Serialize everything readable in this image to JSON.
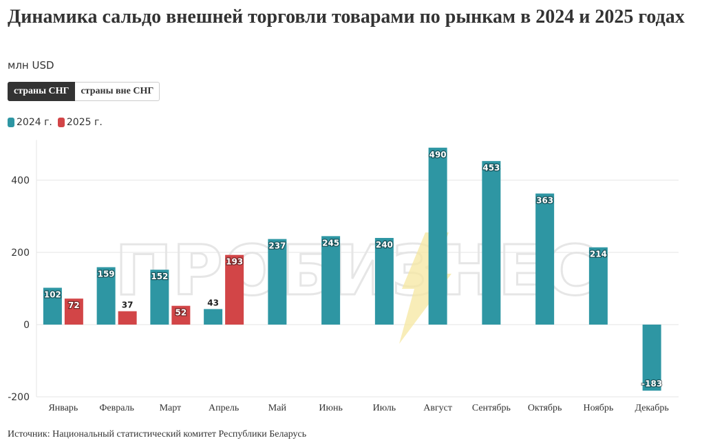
{
  "title": "Динамика сальдо внешней торговли товарами по рынкам в 2024 и 2025 годах",
  "subtitle": "млн USD",
  "tabs": [
    {
      "label": "страны СНГ",
      "active": true
    },
    {
      "label": "страны вне СНГ",
      "active": false
    }
  ],
  "watermark": "ПРОБИЗНЕС",
  "source": "Источник: Национальный статистический комитет Республики Беларусь",
  "colors": {
    "s2024": "#2e96a3",
    "s2025": "#d24547",
    "grid": "#e6e6e6",
    "axis": "#333333"
  },
  "chart_data": {
    "type": "bar",
    "categories": [
      "Январь",
      "Февраль",
      "Март",
      "Апрель",
      "Май",
      "Июнь",
      "Июль",
      "Август",
      "Сентябрь",
      "Октябрь",
      "Ноябрь",
      "Декабрь"
    ],
    "series": [
      {
        "name": "2024 г.",
        "values": [
          102,
          159,
          152,
          43,
          237,
          245,
          240,
          490,
          453,
          363,
          214,
          -183
        ]
      },
      {
        "name": "2025 г.",
        "values": [
          72,
          37,
          52,
          193,
          null,
          null,
          null,
          null,
          null,
          null,
          null,
          null
        ]
      }
    ],
    "yticks": [
      -200,
      0,
      200,
      400
    ],
    "ylim": [
      -200,
      500
    ],
    "grid": true,
    "legend": "top-left"
  }
}
